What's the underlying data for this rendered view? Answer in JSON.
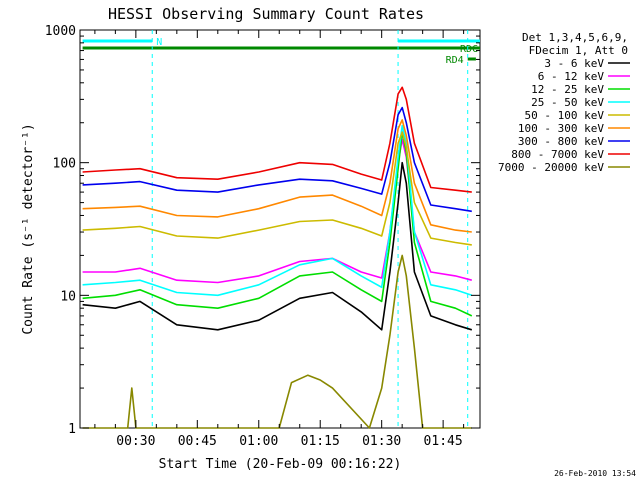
{
  "chart_data": {
    "type": "line",
    "title": "HESSI Observing Summary Count Rates",
    "xlabel": "Start Time (20-Feb-09 00:16:22)",
    "ylabel": "Count Rate (s⁻¹ detector⁻¹)",
    "y_scale": "log",
    "ylim": [
      1,
      1000
    ],
    "xlim": [
      "00:16:22",
      "01:54:00"
    ],
    "x_ticks": [
      "00:30",
      "00:45",
      "01:00",
      "01:15",
      "01:30",
      "01:45"
    ],
    "y_ticks": [
      "1",
      "10",
      "100",
      "1000"
    ],
    "grid": false,
    "legend_position": "right",
    "legend_header": [
      "Det 1,3,4,5,6,9,",
      "FDecim 1, Att 0"
    ],
    "series": [
      {
        "name": "3 - 6 keV",
        "color": "#000000",
        "x": [
          "00:17",
          "00:25",
          "00:31",
          "00:40",
          "00:50",
          "01:00",
          "01:10",
          "01:18",
          "01:25",
          "01:30",
          "01:32",
          "01:34",
          "01:35",
          "01:36",
          "01:38",
          "01:42",
          "01:48",
          "01:52"
        ],
        "y": [
          8.5,
          8.0,
          9.0,
          6.0,
          5.5,
          6.5,
          9.5,
          10.5,
          7.5,
          5.5,
          15,
          50,
          100,
          70,
          15,
          7,
          6,
          5.5
        ]
      },
      {
        "name": "6 - 12 keV",
        "color": "#ff00ff",
        "x": [
          "00:17",
          "00:25",
          "00:31",
          "00:40",
          "00:50",
          "01:00",
          "01:10",
          "01:18",
          "01:25",
          "01:30",
          "01:32",
          "01:34",
          "01:35",
          "01:36",
          "01:38",
          "01:42",
          "01:48",
          "01:52"
        ],
        "y": [
          15,
          15,
          16,
          13,
          12.5,
          14,
          18,
          19,
          15,
          13.5,
          30,
          100,
          150,
          110,
          30,
          15,
          14,
          13
        ]
      },
      {
        "name": "12 - 25 keV",
        "color": "#00dd00",
        "x": [
          "00:17",
          "00:25",
          "00:31",
          "00:40",
          "00:50",
          "01:00",
          "01:10",
          "01:18",
          "01:25",
          "01:30",
          "01:32",
          "01:34",
          "01:35",
          "01:36",
          "01:38",
          "01:42",
          "01:48",
          "01:52"
        ],
        "y": [
          9.5,
          10,
          11,
          8.5,
          8,
          9.5,
          14,
          15,
          11,
          9,
          25,
          90,
          170,
          120,
          25,
          9,
          8,
          7
        ]
      },
      {
        "name": "25 - 50 keV",
        "color": "#00ffff",
        "x": [
          "00:17",
          "00:25",
          "00:31",
          "00:40",
          "00:50",
          "01:00",
          "01:10",
          "01:18",
          "01:25",
          "01:30",
          "01:32",
          "01:34",
          "01:35",
          "01:36",
          "01:38",
          "01:42",
          "01:48",
          "01:52"
        ],
        "y": [
          12,
          12.5,
          13,
          10.5,
          10,
          12,
          17,
          19,
          14,
          11.5,
          30,
          110,
          190,
          140,
          30,
          12,
          11,
          10
        ]
      },
      {
        "name": "50 - 100 keV",
        "color": "#ccbb00",
        "x": [
          "00:17",
          "00:25",
          "00:31",
          "00:40",
          "00:50",
          "01:00",
          "01:10",
          "01:18",
          "01:25",
          "01:30",
          "01:32",
          "01:34",
          "01:35",
          "01:36",
          "01:38",
          "01:42",
          "01:48",
          "01:52"
        ],
        "y": [
          31,
          32,
          33,
          28,
          27,
          31,
          36,
          37,
          32,
          28,
          50,
          140,
          170,
          130,
          50,
          27,
          25,
          24
        ]
      },
      {
        "name": "100 - 300 keV",
        "color": "#ff8800",
        "x": [
          "00:17",
          "00:25",
          "00:31",
          "00:40",
          "00:50",
          "01:00",
          "01:10",
          "01:18",
          "01:25",
          "01:30",
          "01:32",
          "01:34",
          "01:35",
          "01:36",
          "01:38",
          "01:42",
          "01:48",
          "01:52"
        ],
        "y": [
          45,
          46,
          47,
          40,
          39,
          45,
          55,
          57,
          47,
          40,
          70,
          180,
          210,
          160,
          70,
          34,
          31,
          30
        ]
      },
      {
        "name": "300 - 800 keV",
        "color": "#0000ee",
        "x": [
          "00:17",
          "00:25",
          "00:31",
          "00:40",
          "00:50",
          "01:00",
          "01:10",
          "01:18",
          "01:25",
          "01:30",
          "01:32",
          "01:34",
          "01:35",
          "01:36",
          "01:38",
          "01:42",
          "01:48",
          "01:52"
        ],
        "y": [
          68,
          70,
          72,
          62,
          60,
          68,
          75,
          73,
          64,
          58,
          100,
          230,
          260,
          200,
          100,
          48,
          45,
          43
        ]
      },
      {
        "name": "800 - 7000 keV",
        "color": "#ee0000",
        "x": [
          "00:17",
          "00:25",
          "00:31",
          "00:40",
          "00:50",
          "01:00",
          "01:10",
          "01:18",
          "01:25",
          "01:30",
          "01:32",
          "01:34",
          "01:35",
          "01:36",
          "01:38",
          "01:42",
          "01:48",
          "01:52"
        ],
        "y": [
          85,
          88,
          90,
          77,
          75,
          85,
          100,
          97,
          82,
          74,
          140,
          330,
          370,
          300,
          140,
          65,
          62,
          60
        ]
      },
      {
        "name": "7000 - 20000 keV",
        "color": "#888800",
        "x": [
          "00:17",
          "00:28",
          "00:29",
          "00:30",
          "01:05",
          "01:08",
          "01:12",
          "01:15",
          "01:18",
          "01:27",
          "01:30",
          "01:32",
          "01:34",
          "01:35",
          "01:36",
          "01:38",
          "01:40",
          "01:52"
        ],
        "y": [
          1,
          1,
          2,
          1,
          1,
          2.2,
          2.5,
          2.3,
          2,
          1,
          2,
          5,
          15,
          20,
          14,
          4,
          1,
          1
        ]
      }
    ],
    "flags": [
      {
        "label": "N",
        "color": "#00ffff",
        "start": "00:17",
        "end": "00:34"
      },
      {
        "label": "",
        "color": "#00ffff",
        "start": "01:34",
        "end": "01:54"
      },
      {
        "label": "RDC",
        "color": "#008800",
        "start": "00:17",
        "end": "01:54"
      },
      {
        "label": "RD4",
        "color": "#008800",
        "start": "01:51",
        "end": "01:53"
      }
    ],
    "vertical_markers": [
      "00:34",
      "01:34",
      "01:51"
    ]
  },
  "timestamp": "26-Feb-2010 13:54"
}
